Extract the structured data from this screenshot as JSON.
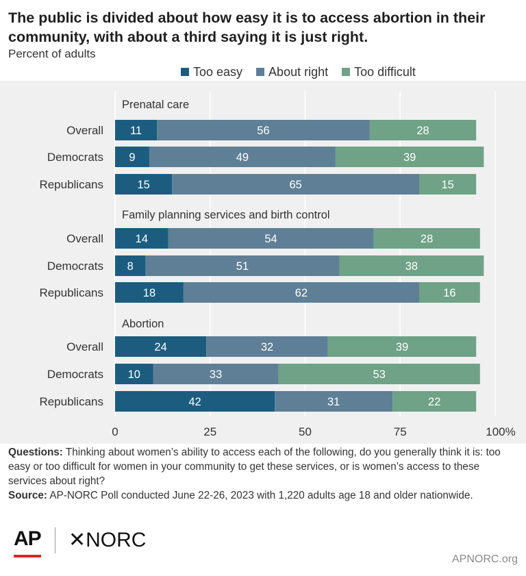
{
  "header": {
    "title": "The public is divided about how easy it is to access abortion in their community, with about a third saying it is just right.",
    "subtitle": "Percent of adults"
  },
  "legend": [
    {
      "label": "Too easy",
      "color": "#1c5d7f"
    },
    {
      "label": "About right",
      "color": "#5e7f96"
    },
    {
      "label": "Too difficult",
      "color": "#6fa287"
    }
  ],
  "chart_data": {
    "type": "bar",
    "orientation": "horizontal",
    "stacked": true,
    "xlim": [
      0,
      100
    ],
    "x_ticks": [
      "0",
      "25",
      "50",
      "75",
      "100%"
    ],
    "grid": true,
    "legend_position": "top",
    "groups": [
      {
        "name": "Prenatal care",
        "rows": [
          {
            "label": "Overall",
            "values": [
              11,
              56,
              28
            ]
          },
          {
            "label": "Democrats",
            "values": [
              9,
              49,
              39
            ]
          },
          {
            "label": "Republicans",
            "values": [
              15,
              65,
              15
            ]
          }
        ]
      },
      {
        "name": "Family planning services and birth control",
        "rows": [
          {
            "label": "Overall",
            "values": [
              14,
              54,
              28
            ]
          },
          {
            "label": "Democrats",
            "values": [
              8,
              51,
              38
            ]
          },
          {
            "label": "Republicans",
            "values": [
              18,
              62,
              16
            ]
          }
        ]
      },
      {
        "name": "Abortion",
        "rows": [
          {
            "label": "Overall",
            "values": [
              24,
              32,
              39
            ]
          },
          {
            "label": "Democrats",
            "values": [
              10,
              33,
              53
            ]
          },
          {
            "label": "Republicans",
            "values": [
              42,
              31,
              22
            ]
          }
        ]
      }
    ]
  },
  "notes": {
    "questions_label": "Questions:",
    "questions_text": "Thinking about women’s ability to access each of the following, do you generally think it is: too easy or too difficult for women in your community to get these services, or is women’s access to these services about right?",
    "source_label": "Source:",
    "source_text": "AP-NORC Poll conducted June 22-26, 2023 with 1,220 adults age 18 and older nationwide."
  },
  "footer": {
    "logo_ap": "AP",
    "logo_norc": "✕NORC",
    "url": "APNORC.org"
  }
}
